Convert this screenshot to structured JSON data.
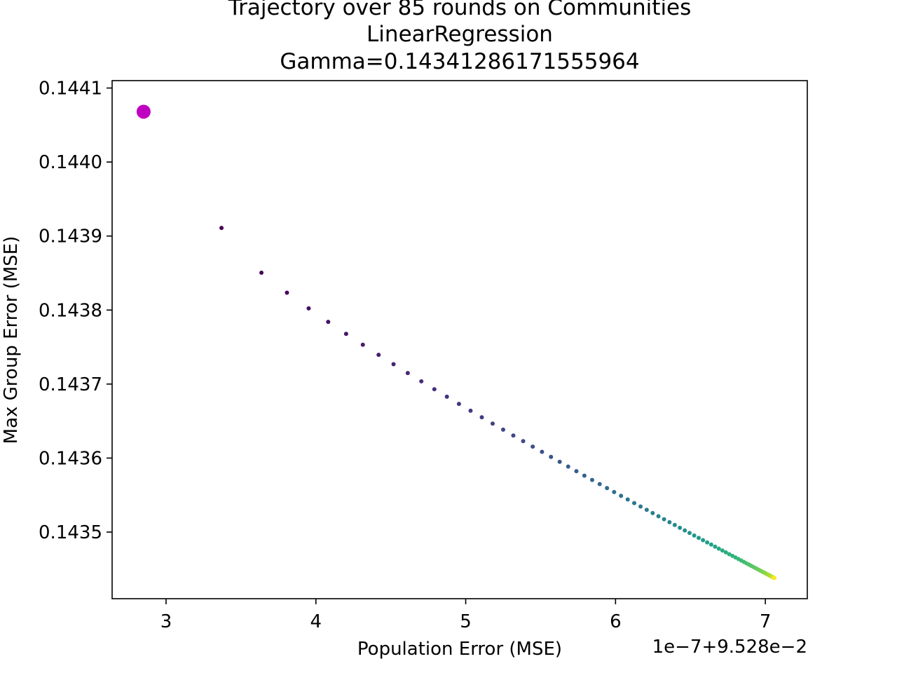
{
  "chart_data": {
    "type": "scatter",
    "title_lines": [
      "Trajectory over 85 rounds on Communities",
      "LinearRegression",
      "Gamma=0.14341286171555964"
    ],
    "xlabel": "Population Error (MSE)",
    "ylabel": "Max Group Error (MSE)",
    "x_offset_text": "1e−7+9.528e−2",
    "x_units_note": "x values shown in tick units; actual = x * 1e-7 + 9.528e-2",
    "xlim": [
      2.64,
      7.28
    ],
    "ylim": [
      0.14341,
      0.14411
    ],
    "x_ticks": [
      {
        "value": 3,
        "label": "3"
      },
      {
        "value": 4,
        "label": "4"
      },
      {
        "value": 5,
        "label": "5"
      },
      {
        "value": 6,
        "label": "6"
      },
      {
        "value": 7,
        "label": "7"
      }
    ],
    "y_ticks": [
      {
        "value": 0.1435,
        "label": "0.1435"
      },
      {
        "value": 0.1436,
        "label": "0.1436"
      },
      {
        "value": 0.1437,
        "label": "0.1437"
      },
      {
        "value": 0.1438,
        "label": "0.1438"
      },
      {
        "value": 0.1439,
        "label": "0.1439"
      },
      {
        "value": 0.144,
        "label": "0.1440"
      },
      {
        "value": 0.1441,
        "label": "0.1441"
      }
    ],
    "start_point": {
      "x": 2.85,
      "y": 0.144068,
      "color": "#c000c0"
    },
    "colormap": [
      "#440154",
      "#482878",
      "#3e4989",
      "#31688e",
      "#26828e",
      "#1f9e89",
      "#35b779",
      "#6ece58",
      "#b5de2b",
      "#fde725"
    ],
    "grid": false,
    "legend": "none",
    "n_rounds": 85
  }
}
